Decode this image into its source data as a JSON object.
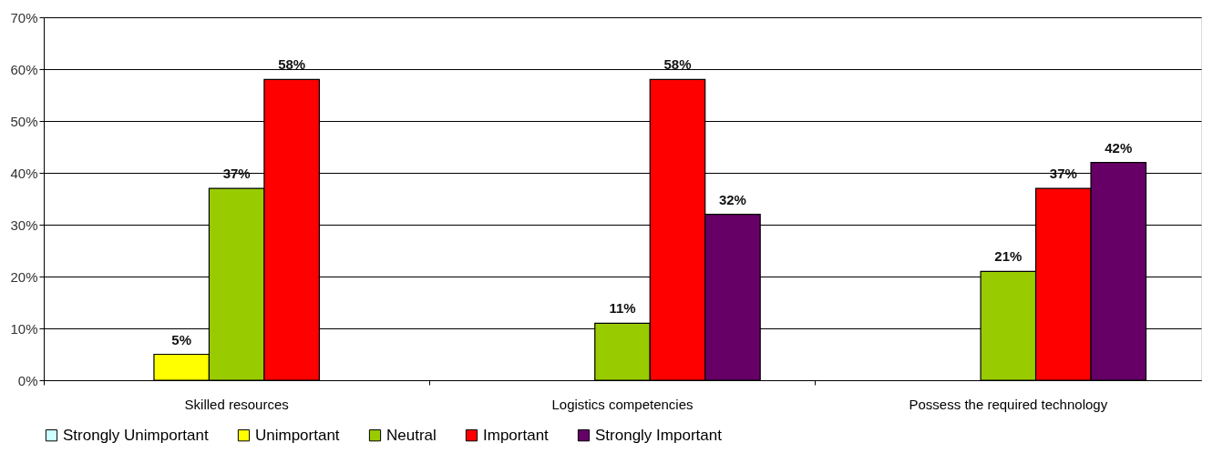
{
  "chart_data": {
    "type": "bar",
    "categories": [
      "Skilled resources",
      "Logistics competencies",
      "Possess the required technology"
    ],
    "series": [
      {
        "name": "Strongly Unimportant",
        "color": "#ccffff",
        "values": [
          null,
          null,
          null
        ]
      },
      {
        "name": "Unimportant",
        "color": "#ffff00",
        "values": [
          5,
          null,
          null
        ],
        "value_labels": [
          "5%",
          null,
          null
        ]
      },
      {
        "name": "Neutral",
        "color": "#99cc00",
        "values": [
          37,
          11,
          21
        ],
        "value_labels": [
          "37%",
          "11%",
          "21%"
        ]
      },
      {
        "name": "Important",
        "color": "#ff0000",
        "values": [
          58,
          58,
          37
        ],
        "value_labels": [
          "58%",
          "58%",
          "37%"
        ]
      },
      {
        "name": "Strongly Important",
        "color": "#660066",
        "values": [
          null,
          32,
          42
        ],
        "value_labels": [
          null,
          "32%",
          "42%"
        ]
      }
    ],
    "ylim": [
      0,
      70
    ],
    "yticks": [
      {
        "value": 0,
        "label": "0%"
      },
      {
        "value": 10,
        "label": "10%"
      },
      {
        "value": 20,
        "label": "20%"
      },
      {
        "value": 30,
        "label": "30%"
      },
      {
        "value": 40,
        "label": "40%"
      },
      {
        "value": 50,
        "label": "50%"
      },
      {
        "value": 60,
        "label": "60%"
      },
      {
        "value": 70,
        "label": "70%"
      }
    ],
    "grid": "y",
    "legend": "bottom"
  }
}
